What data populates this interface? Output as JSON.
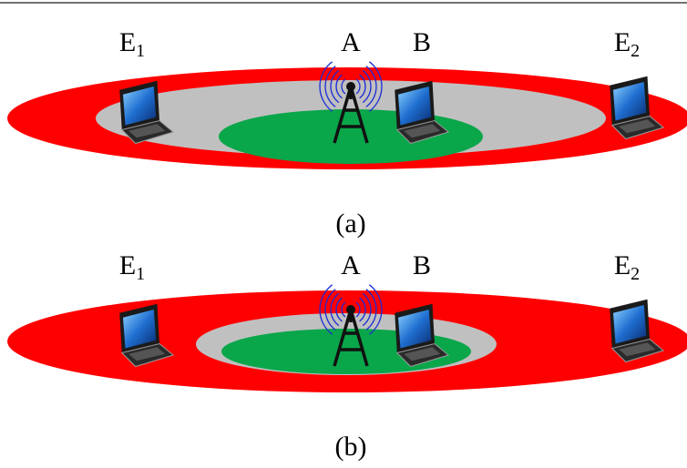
{
  "panels": [
    {
      "labels": [
        {
          "text": "E",
          "sub": "1"
        },
        {
          "text": "A"
        },
        {
          "text": "B"
        },
        {
          "text": "E",
          "sub": "2"
        }
      ],
      "caption": "(a)"
    },
    {
      "labels": [
        {
          "text": "E",
          "sub": "1"
        },
        {
          "text": "A"
        },
        {
          "text": "B"
        },
        {
          "text": "E",
          "sub": "2"
        }
      ],
      "caption": "(b)"
    }
  ]
}
